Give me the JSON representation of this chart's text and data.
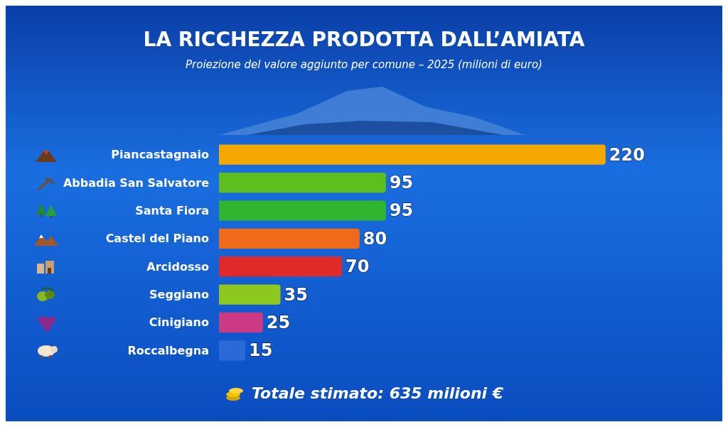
{
  "chart_data": {
    "type": "bar",
    "orientation": "horizontal",
    "title": "LA RICCHEZZA PRODOTTA DALL’AMIATA",
    "subtitle": "Proiezione del valore aggiunto per comune – 2025 (milioni di euro)",
    "categories": [
      "Piancastagnaio",
      "Abbadia San Salvatore",
      "Santa Fiora",
      "Castel del Piano",
      "Arcidosso",
      "Seggiano",
      "Cinigiano",
      "Roccalbegna"
    ],
    "values": [
      220,
      95,
      95,
      80,
      70,
      35,
      25,
      15
    ],
    "colors": [
      "#f5a800",
      "#5cbf1e",
      "#2fb52f",
      "#f06a1a",
      "#e02a2a",
      "#8cc81e",
      "#cc3a86",
      "#2a6ad8"
    ],
    "data_labels": true,
    "annotations": [
      "Totale stimato: 635 milioni €"
    ]
  }
}
